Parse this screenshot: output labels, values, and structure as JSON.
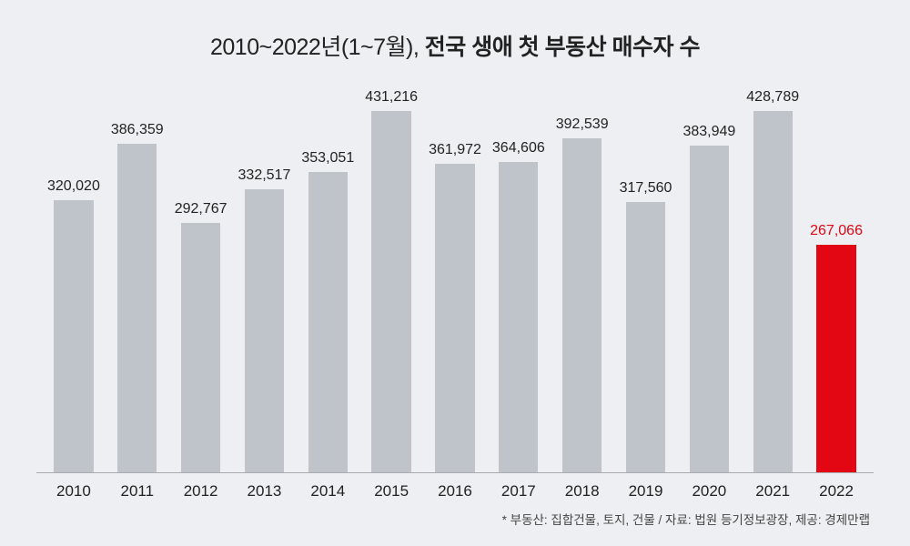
{
  "chart": {
    "type": "bar",
    "title_light": "2010~2022년(1~7월), ",
    "title_bold": "전국 생애 첫 부동산 매수자 수",
    "title_fontsize": 25,
    "title_color": "#222222",
    "background_color": "#edeff2",
    "axis_line_color": "#a9abae",
    "bar_width_pct": 62,
    "ylim": [
      0,
      450000
    ],
    "label_fontsize": 16,
    "tick_fontsize": 17,
    "categories": [
      "2010",
      "2011",
      "2012",
      "2013",
      "2014",
      "2015",
      "2016",
      "2017",
      "2018",
      "2019",
      "2020",
      "2021",
      "2022"
    ],
    "values": [
      320020,
      386359,
      292767,
      332517,
      353051,
      431216,
      361972,
      364606,
      392539,
      317560,
      383949,
      428789,
      267066
    ],
    "value_labels": [
      "320,020",
      "386,359",
      "292,767",
      "332,517",
      "353,051",
      "431,216",
      "361,972",
      "364,606",
      "392,539",
      "317,560",
      "383,949",
      "428,789",
      "267,066"
    ],
    "bar_colors": [
      "#bfc3ca",
      "#bfc3ca",
      "#bfc3ca",
      "#bfc3ca",
      "#bfc3ca",
      "#bfc3ca",
      "#bfc3ca",
      "#bfc3ca",
      "#bfc3ca",
      "#bfc3ca",
      "#bfc3ca",
      "#bfc3ca",
      "#e30613"
    ],
    "label_colors": [
      "#222222",
      "#222222",
      "#222222",
      "#222222",
      "#222222",
      "#222222",
      "#222222",
      "#222222",
      "#222222",
      "#222222",
      "#222222",
      "#222222",
      "#e30613"
    ],
    "footnote": "* 부동산: 집합건물, 토지, 건물 / 자료: 법원 등기정보광장, 제공: 경제만랩",
    "footnote_fontsize": 13.5,
    "footnote_color": "#444444"
  }
}
